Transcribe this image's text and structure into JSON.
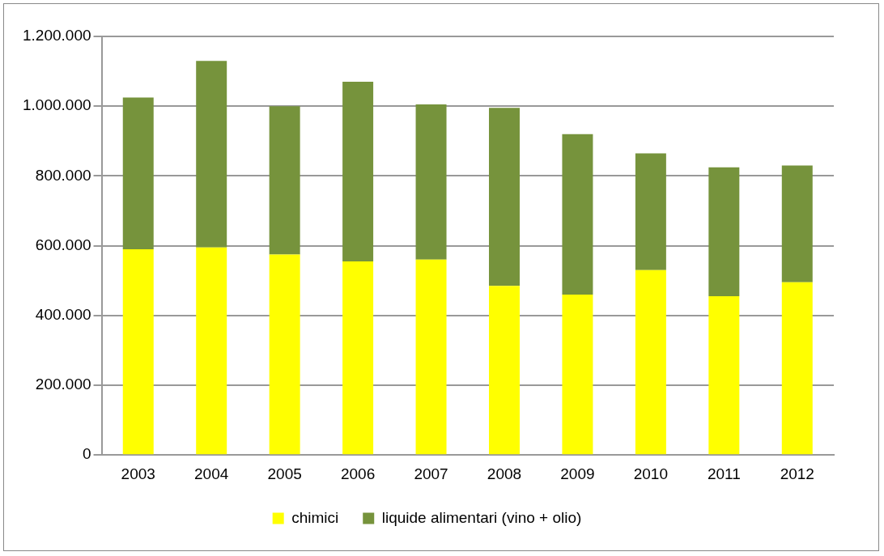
{
  "chart_data": {
    "type": "bar",
    "stacked": true,
    "categories": [
      "2003",
      "2004",
      "2005",
      "2006",
      "2007",
      "2008",
      "2009",
      "2010",
      "2011",
      "2012"
    ],
    "series": [
      {
        "name": "chimici",
        "color": "#ffff00",
        "values": [
          590000,
          595000,
          575000,
          555000,
          560000,
          485000,
          460000,
          530000,
          455000,
          495000
        ]
      },
      {
        "name": "liquide alimentari (vino + olio)",
        "color": "#76933c",
        "values": [
          435000,
          535000,
          425000,
          515000,
          445000,
          510000,
          460000,
          335000,
          370000,
          335000
        ]
      }
    ],
    "ylim": [
      0,
      1200000
    ],
    "yticks": [
      0,
      {
        "value": 200000,
        "label": "200.000"
      },
      {
        "value": 400000,
        "label": "400.000"
      },
      {
        "value": 600000,
        "label": "600.000"
      },
      {
        "value": 800000,
        "label": "800.000"
      },
      {
        "value": 1000000,
        "label": "1.000.000"
      },
      {
        "value": 1200000,
        "label": "1.200.000"
      }
    ],
    "grid": "y",
    "legend": "bottom"
  }
}
